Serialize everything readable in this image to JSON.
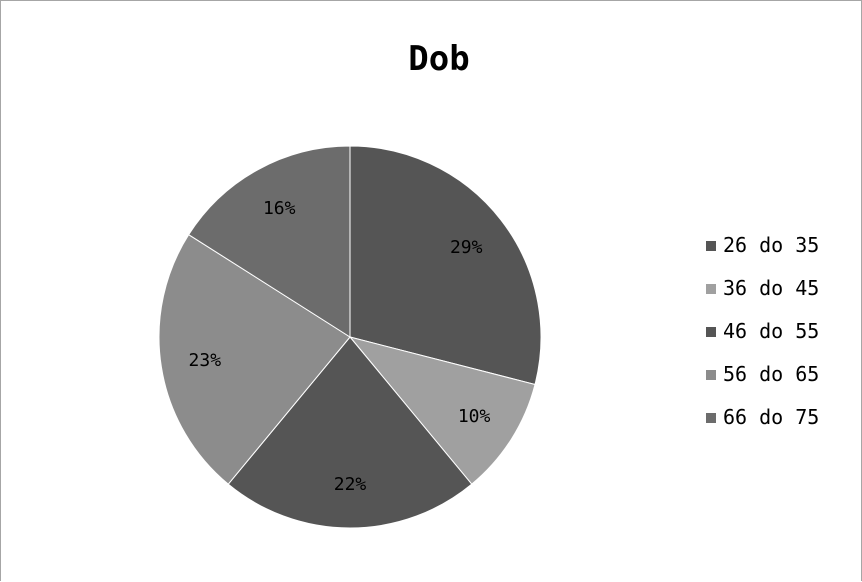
{
  "chart_data": {
    "type": "pie",
    "title": "Dob",
    "categories": [
      "26 do 35",
      "36 do 45",
      "46 do 55",
      "56 do 65",
      "66 do 75"
    ],
    "values": [
      29,
      10,
      22,
      23,
      16
    ],
    "labels": [
      "29%",
      "10%",
      "22%",
      "23%",
      "16%"
    ],
    "colors": [
      "#555555",
      "#a0a0a0",
      "#555555",
      "#8c8c8c",
      "#6c6c6c"
    ],
    "legend": "right"
  }
}
